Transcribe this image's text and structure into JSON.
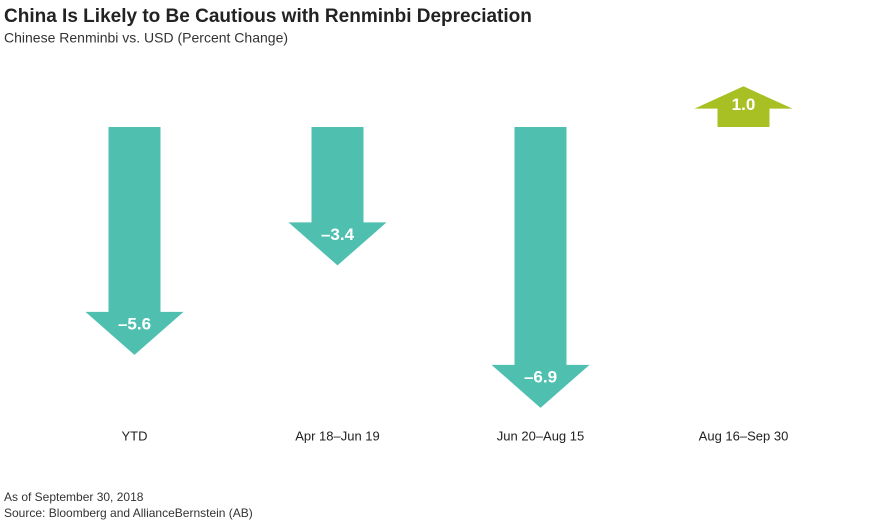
{
  "chart_data": {
    "type": "arrow",
    "title": "China Is Likely to Be Cautious with Renminbi Depreciation",
    "subtitle": "Chinese Renminbi vs. USD (Percent Change)",
    "categories": [
      "YTD",
      "Apr 18–Jun 19",
      "Jun 20–Aug 15",
      "Aug 16–Sep 30"
    ],
    "values": [
      -5.6,
      -3.4,
      -6.9,
      1.0
    ],
    "value_labels": [
      "–5.6",
      "–3.4",
      "–6.9",
      "1.0"
    ],
    "colors": [
      "#4fc0b0",
      "#4fc0b0",
      "#4fc0b0",
      "#a8c023"
    ],
    "notes": [
      "As of September 30, 2018",
      "Source: Bloomberg and AllianceBernstein (AB)"
    ]
  }
}
